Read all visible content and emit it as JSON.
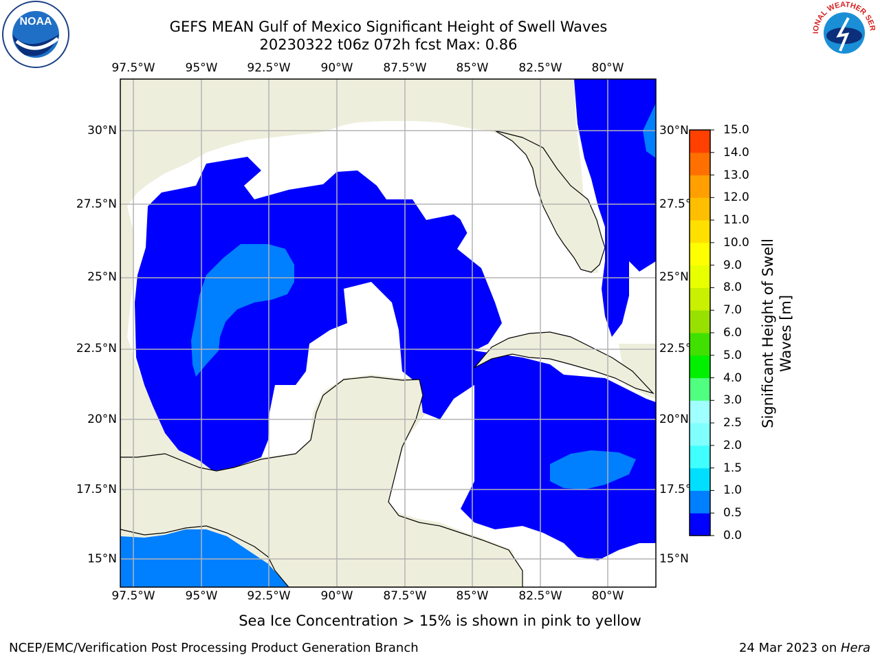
{
  "title": {
    "line1": "GEFS MEAN Gulf of Mexico Significant Height of Swell Waves",
    "line2": "20230322 t06z 072h fcst   Max: 0.86"
  },
  "map": {
    "x_ticks": [
      "97.5°W",
      "95°W",
      "92.5°W",
      "90°W",
      "87.5°W",
      "85°W",
      "82.5°W",
      "80°W"
    ],
    "y_ticks": [
      "30°N",
      "27.5°N",
      "25°N",
      "22.5°N",
      "20°N",
      "17.5°N",
      "15°N"
    ],
    "colors": {
      "land": "#eeeedc",
      "water_white": "#ffffff",
      "swell_0_0p5": "#0000ff",
      "swell_0p5_1p0": "#007fff",
      "grid": "#b4b4b4",
      "coast": "#000000"
    }
  },
  "colorbar": {
    "title_line1": "Significant Height of Swell",
    "title_line2": "Waves [m]",
    "levels": [
      "0.0",
      "0.5",
      "1.0",
      "1.5",
      "2.0",
      "2.5",
      "3.0",
      "4.0",
      "5.0",
      "6.0",
      "7.0",
      "8.0",
      "9.0",
      "10.0",
      "11.0",
      "12.0",
      "13.0",
      "14.0",
      "15.0"
    ],
    "colors": [
      "#0000ff",
      "#007fff",
      "#00dfff",
      "#40ffff",
      "#80ffff",
      "#a0ffff",
      "#50ff80",
      "#00f000",
      "#40e000",
      "#98e000",
      "#c8f000",
      "#e8ff00",
      "#ffff00",
      "#ffdf00",
      "#ffbf00",
      "#ff9f00",
      "#ff7000",
      "#ff4000",
      "#ff0000"
    ]
  },
  "footnote": "Sea Ice Concentration > 15% is shown in pink to yellow",
  "credit": "NCEP/EMC/Verification Post Processing Product Generation Branch",
  "date_prefix": "24 Mar 2023 on ",
  "date_host": "Hera",
  "logos": {
    "left": "NOAA",
    "right": "NATIONAL WEATHER SERVICE"
  }
}
